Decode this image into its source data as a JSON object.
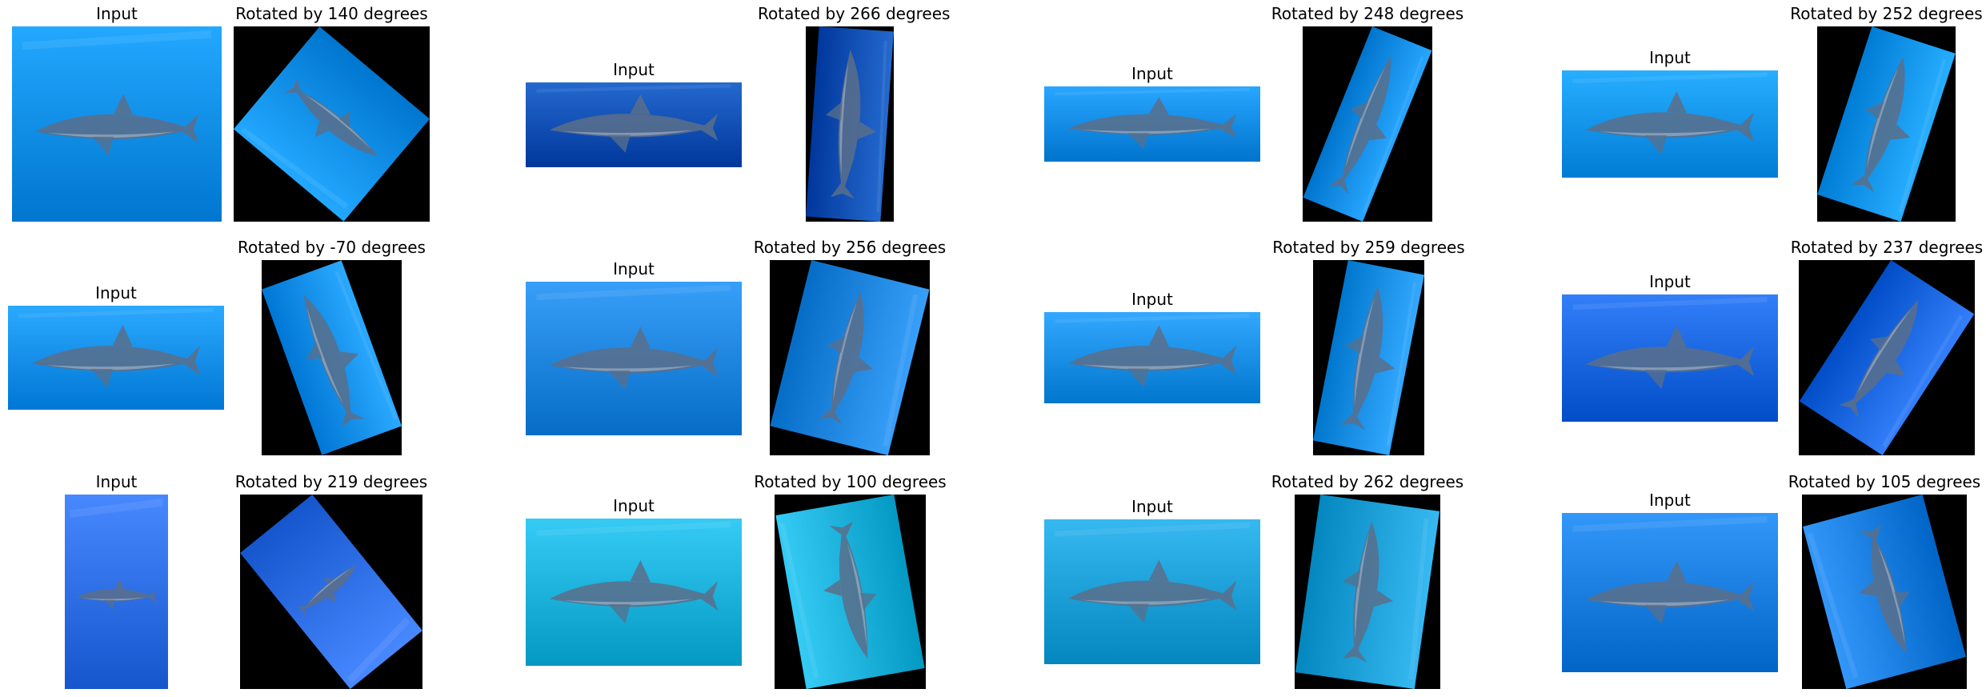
{
  "figure": {
    "rows": [
      {
        "pairs": [
          {
            "input_label": "Input",
            "output_label": "Rotated by 140 degrees",
            "rotation_deg": 140,
            "input_scene": "dolphin-underwater-blue-haze",
            "water_color": "#0a8fe8"
          },
          {
            "input_label": "Input",
            "output_label": "Rotated by 266 degrees",
            "rotation_deg": 266,
            "input_scene": "spotted-dolphin-deep-blue",
            "water_color": "#0b50b5"
          },
          {
            "input_label": "Input",
            "output_label": "Rotated by 248 degrees",
            "rotation_deg": 248,
            "input_scene": "two-dolphins-surface",
            "water_color": "#0f8de6"
          },
          {
            "input_label": "Input",
            "output_label": "Rotated by 252 degrees",
            "rotation_deg": 252,
            "input_scene": "two-dolphins-swimming",
            "water_color": "#0e95ee"
          }
        ]
      },
      {
        "pairs": [
          {
            "input_label": "Input",
            "output_label": "Rotated by -70 degrees",
            "rotation_deg": -70,
            "input_scene": "dolphin-pod-blue",
            "water_color": "#1290ee"
          },
          {
            "input_label": "Input",
            "output_label": "Rotated by 256 degrees",
            "rotation_deg": 256,
            "input_scene": "dolphin-close-up-sunlight",
            "water_color": "#1f86e0"
          },
          {
            "input_label": "Input",
            "output_label": "Rotated by 259 degrees",
            "rotation_deg": 259,
            "input_scene": "dolphins-with-calves",
            "water_color": "#1a8fe6"
          },
          {
            "input_label": "Input",
            "output_label": "Rotated by 237 degrees",
            "rotation_deg": 237,
            "input_scene": "dolphin-diving",
            "water_color": "#1a66e0"
          }
        ]
      },
      {
        "pairs": [
          {
            "input_label": "Input",
            "output_label": "Rotated by 219 degrees",
            "rotation_deg": 219,
            "input_scene": "dolphin-vertical-purple-blue",
            "water_color": "#2f6fe6"
          },
          {
            "input_label": "Input",
            "output_label": "Rotated by 100 degrees",
            "rotation_deg": 100,
            "input_scene": "spotted-dolphin-turquoise",
            "water_color": "#1cb2dc"
          },
          {
            "input_label": "Input",
            "output_label": "Rotated by 262 degrees",
            "rotation_deg": 262,
            "input_scene": "spotted-dolphin-head-closeup",
            "water_color": "#1d9fd8"
          },
          {
            "input_label": "Input",
            "output_label": "Rotated by 105 degrees",
            "rotation_deg": 105,
            "input_scene": "dolphin-near-surface",
            "water_color": "#1a7ee0"
          }
        ]
      }
    ],
    "colors": {
      "background": "#ffffff",
      "rotation_fill": "#000000",
      "dolphin_body": "#5a6f8a",
      "dolphin_belly": "#b9c6d6"
    }
  }
}
